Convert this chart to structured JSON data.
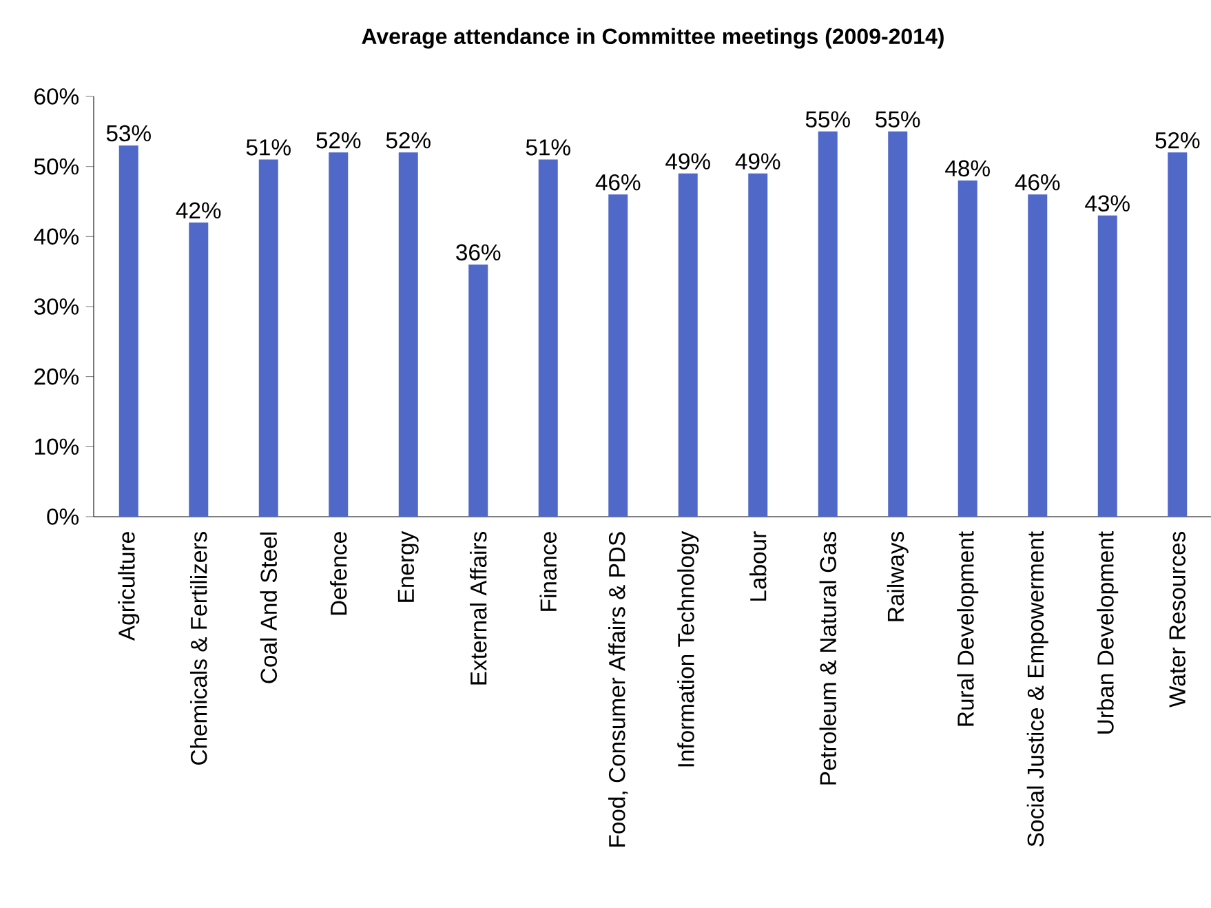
{
  "chart_data": {
    "type": "bar",
    "title": "Average attendance in Committee meetings (2009-2014)",
    "categories": [
      "Agriculture",
      "Chemicals & Fertilizers",
      "Coal And Steel",
      "Defence",
      "Energy",
      "External Affairs",
      "Finance",
      "Food, Consumer Affairs & PDS",
      "Information Technology",
      "Labour",
      "Petroleum & Natural Gas",
      "Railways",
      "Rural Development",
      "Social Justice & Empowerment",
      "Urban  Development",
      "Water Resources"
    ],
    "values": [
      53,
      42,
      51,
      52,
      52,
      36,
      51,
      46,
      49,
      49,
      55,
      55,
      48,
      46,
      43,
      52
    ],
    "value_labels": [
      "53%",
      "42%",
      "51%",
      "52%",
      "52%",
      "36%",
      "51%",
      "46%",
      "49%",
      "49%",
      "55%",
      "55%",
      "48%",
      "46%",
      "43%",
      "52%"
    ],
    "color": "#5068c8",
    "ylim": [
      0,
      60
    ],
    "yticks": [
      {
        "value": 0,
        "label": "0%"
      },
      {
        "value": 10,
        "label": "10%"
      },
      {
        "value": 20,
        "label": "20%"
      },
      {
        "value": 30,
        "label": "30%"
      },
      {
        "value": 40,
        "label": "40%"
      },
      {
        "value": 50,
        "label": "50%"
      },
      {
        "value": 60,
        "label": "60%"
      }
    ]
  }
}
